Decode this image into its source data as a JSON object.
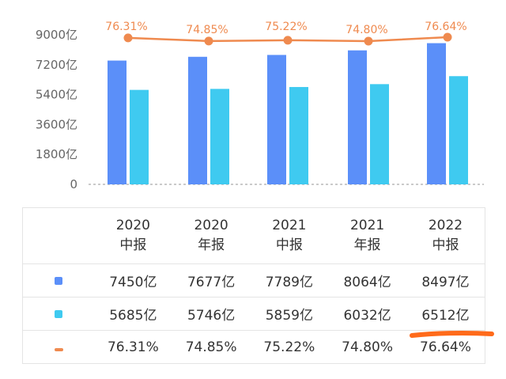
{
  "chart_data": {
    "type": "bar",
    "categories": [
      "2020 中报",
      "2020 年报",
      "2021 中报",
      "2021 年报",
      "2022 中报"
    ],
    "category_lines": [
      [
        "2020",
        "中报"
      ],
      [
        "2020",
        "年报"
      ],
      [
        "2021",
        "中报"
      ],
      [
        "2021",
        "年报"
      ],
      [
        "2022",
        "中报"
      ]
    ],
    "series": [
      {
        "type": "bar",
        "values": [
          7450,
          7677,
          7789,
          8064,
          8497
        ],
        "labels": [
          "7450亿",
          "7677亿",
          "7789亿",
          "8064亿",
          "8497亿"
        ],
        "color": "#5b8ff9"
      },
      {
        "type": "bar",
        "values": [
          5685,
          5746,
          5859,
          6032,
          6512
        ],
        "labels": [
          "5685亿",
          "5746亿",
          "5859亿",
          "6032亿",
          "6512亿"
        ],
        "color": "#3fcaf0"
      },
      {
        "type": "line",
        "values": [
          76.31,
          74.85,
          75.22,
          74.8,
          76.64
        ],
        "labels": [
          "76.31%",
          "74.85%",
          "75.22%",
          "74.80%",
          "76.64%"
        ],
        "color": "#ef8a4f"
      }
    ],
    "y_ticks": [
      "0",
      "1800亿",
      "3600亿",
      "5400亿",
      "7200亿",
      "9000亿"
    ],
    "ylim": [
      0,
      9000
    ],
    "grid": false
  },
  "colors": {
    "accent_underline": "#ff6a1a",
    "axis": "#aaaaaa"
  }
}
